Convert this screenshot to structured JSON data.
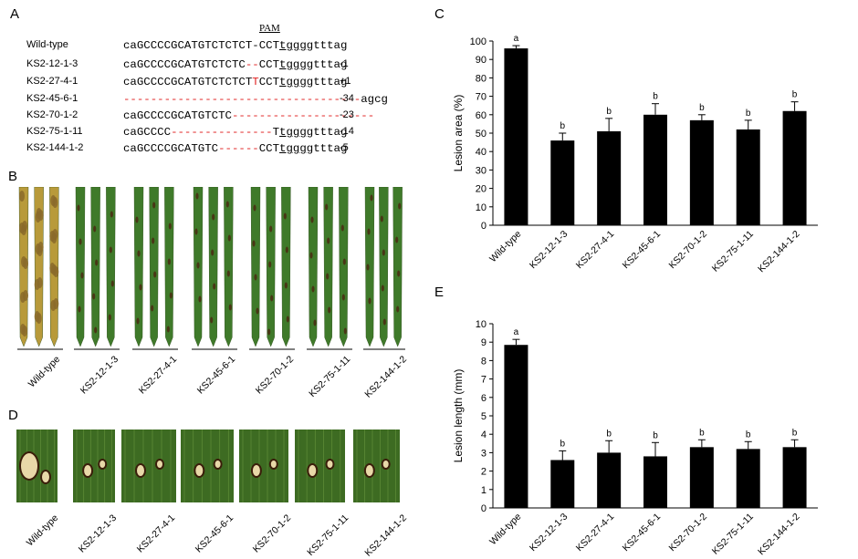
{
  "panels": {
    "A": "A",
    "B": "B",
    "C": "C",
    "D": "D",
    "E": "E"
  },
  "pam_label": "PAM",
  "sequences": [
    {
      "name": "Wild-type",
      "segments": [
        {
          "t": "caGCCCCGCATGTCTCTCT-CCT",
          "c": ""
        },
        {
          "t": "tggg",
          "c": "ul"
        },
        {
          "t": "gtttag",
          "c": ""
        }
      ],
      "change": ""
    },
    {
      "name": "KS2-12-1-3",
      "segments": [
        {
          "t": "caGCCCCGCATGTCTCTC",
          "c": ""
        },
        {
          "t": "--",
          "c": "red"
        },
        {
          "t": "CCT",
          "c": ""
        },
        {
          "t": "tggg",
          "c": "ul"
        },
        {
          "t": "gtttag",
          "c": ""
        }
      ],
      "change": "-1"
    },
    {
      "name": "KS2-27-4-1",
      "segments": [
        {
          "t": "caGCCCCGCATGTCTCTCT",
          "c": ""
        },
        {
          "t": "T",
          "c": "red"
        },
        {
          "t": "CCT",
          "c": ""
        },
        {
          "t": "tggg",
          "c": "ul"
        },
        {
          "t": "gtttag",
          "c": ""
        }
      ],
      "change": "+1"
    },
    {
      "name": "KS2-45-6-1",
      "segments": [
        {
          "t": "-----------------------------------",
          "c": "red"
        },
        {
          "t": "agcg",
          "c": ""
        }
      ],
      "change": "-34"
    },
    {
      "name": "KS2-70-1-2",
      "segments": [
        {
          "t": "caGCCCCGCATGTCTC",
          "c": ""
        },
        {
          "t": "---------------------",
          "c": "red"
        }
      ],
      "change": "-23"
    },
    {
      "name": "KS2-75-1-11",
      "segments": [
        {
          "t": "caGCCCC",
          "c": ""
        },
        {
          "t": "---------------",
          "c": "red"
        },
        {
          "t": "T",
          "c": ""
        },
        {
          "t": "tggg",
          "c": "ul"
        },
        {
          "t": "gtttag",
          "c": ""
        }
      ],
      "change": "-14"
    },
    {
      "name": "KS2-144-1-2",
      "segments": [
        {
          "t": "caGCCCCGCATGTC",
          "c": ""
        },
        {
          "t": "------",
          "c": "red"
        },
        {
          "t": "CCT",
          "c": ""
        },
        {
          "t": "tggg",
          "c": "ul"
        },
        {
          "t": "gtttag",
          "c": ""
        }
      ],
      "change": "-5"
    }
  ],
  "photo_labels": [
    "Wild-type",
    "KS2-12-1-3",
    "KS2-27-4-1",
    "KS2-45-6-1",
    "KS2-70-1-2",
    "KS2-75-1-11",
    "KS2-144-1-2"
  ],
  "colors": {
    "bar": "#000000",
    "leaf_green": "#3f7a2a",
    "leaf_yellow": "#b89a3a",
    "lesion": "#4a2a12",
    "red": "#e02020"
  },
  "chart_data": [
    {
      "type": "bar",
      "panel": "C",
      "categories": [
        "Wild-type",
        "KS2-12-1-3",
        "KS2-27-4-1",
        "KS2-45-6-1",
        "KS2-70-1-2",
        "KS2-75-1-11",
        "KS2-144-1-2"
      ],
      "values": [
        96,
        46,
        51,
        60,
        57,
        52,
        62
      ],
      "errors": [
        1.5,
        4,
        7,
        6,
        3,
        5,
        5
      ],
      "significance": [
        "a",
        "b",
        "b",
        "b",
        "b",
        "b",
        "b"
      ],
      "ylabel": "Lesion area (%)",
      "ylim": [
        0,
        100
      ],
      "yticks": [
        0,
        10,
        20,
        30,
        40,
        50,
        60,
        70,
        80,
        90,
        100
      ]
    },
    {
      "type": "bar",
      "panel": "E",
      "categories": [
        "Wild-type",
        "KS2-12-1-3",
        "KS2-27-4-1",
        "KS2-45-6-1",
        "KS2-70-1-2",
        "KS2-75-1-11",
        "KS2-144-1-2"
      ],
      "values": [
        8.85,
        2.6,
        3.0,
        2.8,
        3.3,
        3.2,
        3.3
      ],
      "errors": [
        0.3,
        0.5,
        0.65,
        0.75,
        0.4,
        0.4,
        0.4
      ],
      "significance": [
        "a",
        "b",
        "b",
        "b",
        "b",
        "b",
        "b"
      ],
      "ylabel": "Lesion length (mm)",
      "ylim": [
        0,
        10
      ],
      "yticks": [
        0,
        1,
        2,
        3,
        4,
        5,
        6,
        7,
        8,
        9,
        10
      ]
    }
  ]
}
